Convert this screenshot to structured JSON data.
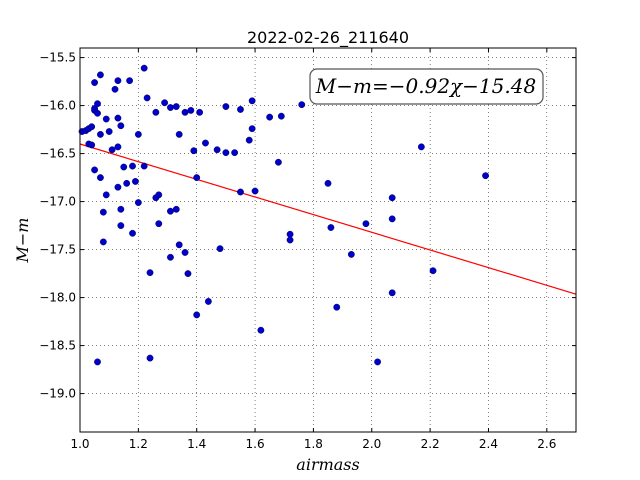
{
  "chart_data": {
    "type": "scatter",
    "title": "2022-02-26_211640",
    "xlabel": "airmass",
    "ylabel": "M−m",
    "xlim": [
      1.0,
      2.7
    ],
    "ylim": [
      -19.4,
      -15.4
    ],
    "y_inverted": true,
    "grid": true,
    "x_ticks": [
      1.0,
      1.2,
      1.4,
      1.6,
      1.8,
      2.0,
      2.2,
      2.4,
      2.6
    ],
    "x_tick_labels": [
      "1.0",
      "1.2",
      "1.4",
      "1.6",
      "1.8",
      "2.0",
      "2.2",
      "2.4",
      "2.6"
    ],
    "y_ticks": [
      -15.5,
      -16.0,
      -16.5,
      -17.0,
      -17.5,
      -18.0,
      -18.5,
      -19.0
    ],
    "y_tick_labels": [
      "−15.5",
      "−16.0",
      "−16.5",
      "−17.0",
      "−17.5",
      "−18.0",
      "−18.5",
      "−19.0"
    ],
    "point_color": "#0000cc",
    "fit_color": "#ff0000",
    "fit": {
      "slope": -0.92,
      "intercept": -15.48
    },
    "fit_label": "M−m=−0.92χ−15.48",
    "points": [
      [
        1.007,
        -16.27
      ],
      [
        1.02,
        -16.26
      ],
      [
        1.03,
        -16.24
      ],
      [
        1.04,
        -16.22
      ],
      [
        1.03,
        -16.4
      ],
      [
        1.04,
        -16.41
      ],
      [
        1.05,
        -16.05
      ],
      [
        1.05,
        -16.03
      ],
      [
        1.06,
        -16.08
      ],
      [
        1.06,
        -15.98
      ],
      [
        1.05,
        -15.76
      ],
      [
        1.07,
        -15.68
      ],
      [
        1.07,
        -16.3
      ],
      [
        1.09,
        -16.14
      ],
      [
        1.1,
        -16.27
      ],
      [
        1.11,
        -16.46
      ],
      [
        1.12,
        -15.83
      ],
      [
        1.13,
        -15.74
      ],
      [
        1.13,
        -16.13
      ],
      [
        1.14,
        -16.21
      ],
      [
        1.13,
        -16.43
      ],
      [
        1.17,
        -15.74
      ],
      [
        1.22,
        -15.61
      ],
      [
        1.23,
        -15.92
      ],
      [
        1.26,
        -16.07
      ],
      [
        1.29,
        -15.97
      ],
      [
        1.31,
        -16.02
      ],
      [
        1.33,
        -16.01
      ],
      [
        1.36,
        -16.07
      ],
      [
        1.38,
        -16.05
      ],
      [
        1.41,
        -16.07
      ],
      [
        1.5,
        -16.01
      ],
      [
        1.55,
        -16.04
      ],
      [
        1.59,
        -15.95
      ],
      [
        1.65,
        -16.12
      ],
      [
        1.69,
        -16.11
      ],
      [
        1.76,
        -15.99
      ],
      [
        1.2,
        -16.3
      ],
      [
        1.34,
        -16.3
      ],
      [
        1.39,
        -16.47
      ],
      [
        1.43,
        -16.39
      ],
      [
        1.47,
        -16.46
      ],
      [
        1.5,
        -16.49
      ],
      [
        1.53,
        -16.49
      ],
      [
        1.58,
        -16.36
      ],
      [
        1.59,
        -16.24
      ],
      [
        1.05,
        -16.67
      ],
      [
        1.07,
        -16.75
      ],
      [
        1.15,
        -16.64
      ],
      [
        1.18,
        -16.63
      ],
      [
        1.22,
        -16.63
      ],
      [
        1.13,
        -16.85
      ],
      [
        1.16,
        -16.81
      ],
      [
        1.19,
        -16.79
      ],
      [
        1.09,
        -16.93
      ],
      [
        1.08,
        -17.11
      ],
      [
        1.14,
        -17.08
      ],
      [
        1.2,
        -17.01
      ],
      [
        1.26,
        -16.96
      ],
      [
        1.27,
        -16.93
      ],
      [
        1.31,
        -17.1
      ],
      [
        1.33,
        -17.08
      ],
      [
        1.4,
        -16.75
      ],
      [
        1.55,
        -16.9
      ],
      [
        1.6,
        -16.89
      ],
      [
        1.68,
        -16.59
      ],
      [
        1.85,
        -16.81
      ],
      [
        2.07,
        -16.96
      ],
      [
        2.17,
        -16.43
      ],
      [
        2.39,
        -16.73
      ],
      [
        1.14,
        -17.25
      ],
      [
        1.18,
        -17.33
      ],
      [
        1.27,
        -17.23
      ],
      [
        1.08,
        -17.42
      ],
      [
        1.34,
        -17.45
      ],
      [
        1.36,
        -17.53
      ],
      [
        1.31,
        -17.58
      ],
      [
        1.48,
        -17.49
      ],
      [
        1.72,
        -17.34
      ],
      [
        1.72,
        -17.4
      ],
      [
        1.86,
        -17.27
      ],
      [
        1.93,
        -17.55
      ],
      [
        1.98,
        -17.23
      ],
      [
        2.07,
        -17.18
      ],
      [
        1.24,
        -17.74
      ],
      [
        1.37,
        -17.75
      ],
      [
        1.44,
        -18.04
      ],
      [
        1.4,
        -18.18
      ],
      [
        1.62,
        -18.34
      ],
      [
        1.88,
        -18.1
      ],
      [
        2.07,
        -17.95
      ],
      [
        2.21,
        -17.72
      ],
      [
        1.06,
        -18.67
      ],
      [
        1.24,
        -18.63
      ],
      [
        2.02,
        -18.67
      ]
    ]
  }
}
